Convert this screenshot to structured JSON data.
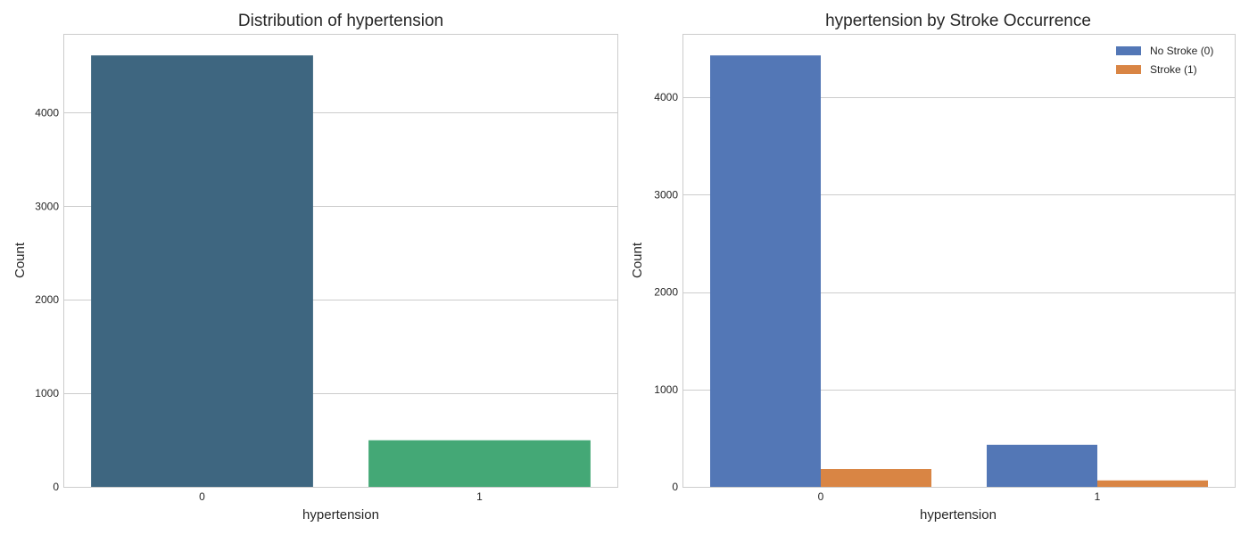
{
  "chart_data": [
    {
      "type": "bar",
      "title": "Distribution of hypertension",
      "xlabel": "hypertension",
      "ylabel": "Count",
      "categories": [
        "0",
        "1"
      ],
      "values": [
        4612,
        498
      ],
      "colors": [
        "#3e6680",
        "#44a876"
      ],
      "ylim": [
        0,
        4842
      ],
      "yticks": [
        0,
        1000,
        2000,
        3000,
        4000
      ],
      "grid": true
    },
    {
      "type": "bar",
      "title": "hypertension by Stroke Occurrence",
      "xlabel": "hypertension",
      "ylabel": "Count",
      "categories": [
        "0",
        "1"
      ],
      "series": [
        {
          "name": "No Stroke (0)",
          "values": [
            4429,
            432
          ],
          "color": "#5377b6"
        },
        {
          "name": "Stroke (1)",
          "values": [
            183,
            66
          ],
          "color": "#d98544"
        }
      ],
      "ylim": [
        0,
        4650
      ],
      "yticks": [
        0,
        1000,
        2000,
        3000,
        4000
      ],
      "grid": true,
      "legend": "top-right"
    }
  ]
}
